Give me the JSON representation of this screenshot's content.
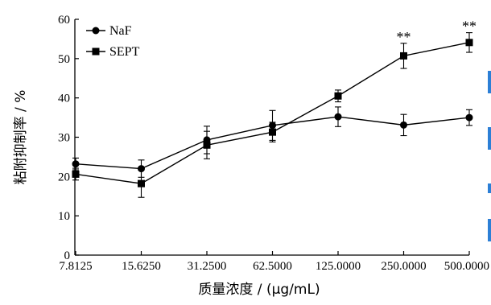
{
  "chart_data": {
    "type": "line",
    "title": "",
    "xlabel": "质量浓度 / (μg/mL)",
    "ylabel": "粘附抑制率 / %",
    "categories": [
      "7.8125",
      "15.6250",
      "31.2500",
      "62.5000",
      "125.0000",
      "250.0000",
      "500.0000"
    ],
    "ylim": [
      0,
      60
    ],
    "yticks": [
      "0",
      "10",
      "20",
      "30",
      "40",
      "50",
      "60"
    ],
    "grid": false,
    "legend_position": "top-left",
    "series": [
      {
        "name": "NaF",
        "marker": "circle",
        "values": [
          23.2,
          22.0,
          29.3,
          33.0,
          35.2,
          33.1,
          35.0
        ],
        "errors": [
          1.5,
          2.2,
          3.5,
          3.8,
          2.5,
          2.7,
          2.0
        ]
      },
      {
        "name": "SEPT",
        "marker": "square",
        "values": [
          20.6,
          18.2,
          28.0,
          31.3,
          40.5,
          50.7,
          54.1
        ],
        "errors": [
          1.5,
          3.5,
          3.5,
          2.5,
          1.5,
          3.2,
          2.5
        ]
      }
    ],
    "annotations": [
      {
        "category": "250.0000",
        "text": "**"
      },
      {
        "category": "500.0000",
        "text": "**"
      }
    ]
  },
  "colors": {
    "line": "#000000",
    "edge_accent": "#2c7fd6"
  }
}
